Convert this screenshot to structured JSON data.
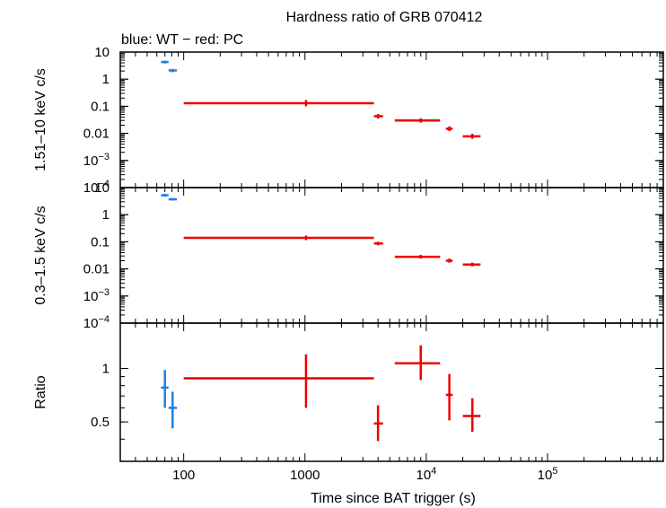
{
  "chart_data": {
    "type": "scatter",
    "title": "Hardness ratio of GRB 070412",
    "subtitle": "blue: WT − red: PC",
    "xlabel": "Time since BAT trigger (s)",
    "x_scale": "log",
    "xlim": [
      30,
      900000
    ],
    "x_ticks": [
      {
        "value": 100,
        "label": "100",
        "sup": ""
      },
      {
        "value": 1000,
        "label": "1000",
        "sup": ""
      },
      {
        "value": 10000,
        "label": "10",
        "sup": "4"
      },
      {
        "value": 100000,
        "label": "10",
        "sup": "5"
      }
    ],
    "series_colors": {
      "WT": "#1a82e6",
      "PC": "#ee0000"
    },
    "panels": [
      {
        "id": "hard",
        "ylabel": "1.51–10 keV c/s",
        "y_scale": "log",
        "ylim": [
          0.0001,
          10
        ],
        "y_ticks": [
          {
            "value": 10,
            "label": "10",
            "sup": ""
          },
          {
            "value": 1,
            "label": "1",
            "sup": ""
          },
          {
            "value": 0.1,
            "label": "0.1",
            "sup": ""
          },
          {
            "value": 0.01,
            "label": "0.01",
            "sup": ""
          },
          {
            "value": 0.001,
            "label": "10",
            "sup": "−3"
          },
          {
            "value": 0.0001,
            "label": "10",
            "sup": "−4"
          }
        ],
        "series": [
          {
            "name": "WT",
            "points": [
              {
                "x": 70,
                "xlo": 65,
                "xhi": 75,
                "y": 4.3,
                "ylo": 3.8,
                "yhi": 4.8
              },
              {
                "x": 81,
                "xlo": 75,
                "xhi": 88,
                "y": 2.1,
                "ylo": 1.8,
                "yhi": 2.4
              }
            ]
          },
          {
            "name": "PC",
            "points": [
              {
                "x": 1020,
                "xlo": 100,
                "xhi": 3700,
                "y": 0.13,
                "ylo": 0.1,
                "yhi": 0.17
              },
              {
                "x": 4000,
                "xlo": 3700,
                "xhi": 4400,
                "y": 0.043,
                "ylo": 0.035,
                "yhi": 0.052
              },
              {
                "x": 9000,
                "xlo": 5500,
                "xhi": 13000,
                "y": 0.03,
                "ylo": 0.025,
                "yhi": 0.036
              },
              {
                "x": 15500,
                "xlo": 14500,
                "xhi": 16500,
                "y": 0.0148,
                "ylo": 0.0122,
                "yhi": 0.018
              },
              {
                "x": 24000,
                "xlo": 20000,
                "xhi": 28000,
                "y": 0.0078,
                "ylo": 0.0063,
                "yhi": 0.0096
              }
            ]
          }
        ]
      },
      {
        "id": "soft",
        "ylabel": "0.3–1.5 keV c/s",
        "y_scale": "log",
        "ylim": [
          0.0001,
          10
        ],
        "y_ticks": [
          {
            "value": 10,
            "label": "10",
            "sup": ""
          },
          {
            "value": 1,
            "label": "1",
            "sup": ""
          },
          {
            "value": 0.1,
            "label": "0.1",
            "sup": ""
          },
          {
            "value": 0.01,
            "label": "0.01",
            "sup": ""
          },
          {
            "value": 0.001,
            "label": "10",
            "sup": "−3"
          },
          {
            "value": 0.0001,
            "label": "10",
            "sup": "−4"
          }
        ],
        "series": [
          {
            "name": "WT",
            "points": [
              {
                "x": 70,
                "xlo": 65,
                "xhi": 75,
                "y": 5.2,
                "ylo": 4.6,
                "yhi": 5.9
              },
              {
                "x": 81,
                "xlo": 75,
                "xhi": 88,
                "y": 3.7,
                "ylo": 3.3,
                "yhi": 4.1
              }
            ]
          },
          {
            "name": "PC",
            "points": [
              {
                "x": 1020,
                "xlo": 100,
                "xhi": 3700,
                "y": 0.14,
                "ylo": 0.115,
                "yhi": 0.17
              },
              {
                "x": 4000,
                "xlo": 3700,
                "xhi": 4400,
                "y": 0.087,
                "ylo": 0.074,
                "yhi": 0.1
              },
              {
                "x": 9000,
                "xlo": 5500,
                "xhi": 13000,
                "y": 0.028,
                "ylo": 0.024,
                "yhi": 0.033
              },
              {
                "x": 15500,
                "xlo": 14500,
                "xhi": 16500,
                "y": 0.02,
                "ylo": 0.017,
                "yhi": 0.024
              },
              {
                "x": 24000,
                "xlo": 20000,
                "xhi": 28000,
                "y": 0.0145,
                "ylo": 0.0124,
                "yhi": 0.017
              }
            ]
          }
        ]
      },
      {
        "id": "ratio",
        "ylabel": "Ratio",
        "y_scale": "log",
        "ylim": [
          0.3,
          1.8
        ],
        "y_ticks": [
          {
            "value": 1,
            "label": "1",
            "sup": ""
          },
          {
            "value": 0.5,
            "label": "0.5",
            "sup": ""
          }
        ],
        "series": [
          {
            "name": "WT",
            "points": [
              {
                "x": 70,
                "xlo": 65,
                "xhi": 75,
                "y": 0.78,
                "ylo": 0.6,
                "yhi": 0.98
              },
              {
                "x": 81,
                "xlo": 75,
                "xhi": 88,
                "y": 0.6,
                "ylo": 0.46,
                "yhi": 0.74
              }
            ]
          },
          {
            "name": "PC",
            "points": [
              {
                "x": 1020,
                "xlo": 100,
                "xhi": 3700,
                "y": 0.88,
                "ylo": 0.6,
                "yhi": 1.2
              },
              {
                "x": 4000,
                "xlo": 3700,
                "xhi": 4400,
                "y": 0.49,
                "ylo": 0.39,
                "yhi": 0.62
              },
              {
                "x": 9000,
                "xlo": 5500,
                "xhi": 13000,
                "y": 1.07,
                "ylo": 0.86,
                "yhi": 1.35
              },
              {
                "x": 15500,
                "xlo": 14500,
                "xhi": 16500,
                "y": 0.71,
                "ylo": 0.51,
                "yhi": 0.93
              },
              {
                "x": 24000,
                "xlo": 20000,
                "xhi": 28000,
                "y": 0.54,
                "ylo": 0.44,
                "yhi": 0.68
              }
            ]
          }
        ]
      }
    ]
  }
}
